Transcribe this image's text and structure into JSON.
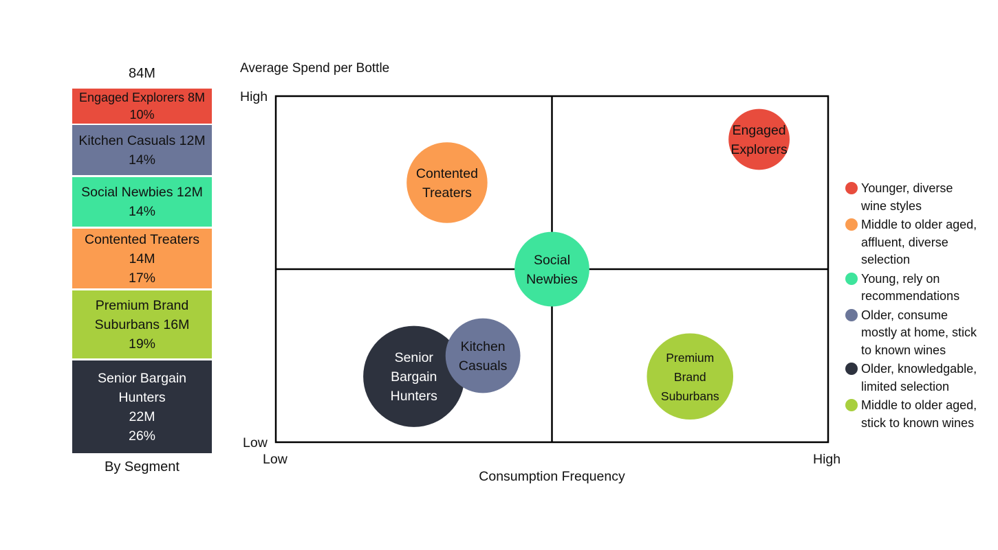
{
  "stack_panel": {
    "total": "84M",
    "footer": "By Segment",
    "segments": [
      {
        "lines": [
          "Engaged Explorers 8M",
          "10%"
        ],
        "color": "#e84c3d",
        "text_color": "#111111"
      },
      {
        "lines": [
          "Kitchen Casuals 12M",
          "14%"
        ],
        "color": "#6b7699",
        "text_color": "#111111"
      },
      {
        "lines": [
          "Social Newbies 12M",
          "14%"
        ],
        "color": "#3ee49c",
        "text_color": "#111111"
      },
      {
        "lines": [
          "Contented Treaters",
          "14M",
          "17%"
        ],
        "color": "#fb9c50",
        "text_color": "#111111"
      },
      {
        "lines": [
          "Premium Brand",
          "Suburbans 16M",
          "19%"
        ],
        "color": "#a8cf3e",
        "text_color": "#111111"
      },
      {
        "lines": [
          "Senior Bargain",
          "Hunters",
          "22M",
          "26%"
        ],
        "color": "#2d323e",
        "text_color": "#ffffff"
      }
    ]
  },
  "chart_data": {
    "type": "scatter",
    "title": "",
    "ylabel": "Average Spend per Bottle",
    "xlabel": "Consumption Frequency",
    "x_ticks": [
      "Low",
      "High"
    ],
    "y_ticks": [
      "Low",
      "High"
    ],
    "xlim": [
      0,
      1
    ],
    "ylim": [
      0,
      1
    ],
    "quadrant_dividers": {
      "x": 0.5,
      "y": 0.5
    },
    "bubbles": [
      {
        "label": [
          "Engaged",
          "Explorers"
        ],
        "x": 0.875,
        "y": 0.875,
        "size": 8,
        "color": "#e84c3d",
        "text_color": "#111111"
      },
      {
        "label": [
          "Contented",
          "Treaters"
        ],
        "x": 0.31,
        "y": 0.75,
        "size": 14,
        "color": "#fb9c50",
        "text_color": "#111111"
      },
      {
        "label": [
          "Social",
          "Newbies"
        ],
        "x": 0.5,
        "y": 0.5,
        "size": 12,
        "color": "#3ee49c",
        "text_color": "#111111"
      },
      {
        "label": [
          "Senior",
          "Bargain",
          "Hunters"
        ],
        "x": 0.25,
        "y": 0.19,
        "size": 22,
        "color": "#2d323e",
        "text_color": "#ffffff"
      },
      {
        "label": [
          "Kitchen",
          "Casuals"
        ],
        "x": 0.375,
        "y": 0.25,
        "size": 12,
        "color": "#6b7699",
        "text_color": "#111111"
      },
      {
        "label": [
          "Premium",
          "Brand",
          "Suburbans"
        ],
        "x": 0.75,
        "y": 0.19,
        "size": 16,
        "color": "#a8cf3e",
        "text_color": "#111111"
      }
    ]
  },
  "legend": [
    {
      "lines": [
        "Younger, diverse",
        "wine styles"
      ],
      "color": "#e84c3d"
    },
    {
      "lines": [
        "Middle to older aged,",
        "affluent, diverse",
        "selection"
      ],
      "color": "#fb9c50"
    },
    {
      "lines": [
        "Young, rely on",
        "recommendations"
      ],
      "color": "#3ee49c"
    },
    {
      "lines": [
        "Older, consume",
        "mostly at home, stick",
        "to known wines"
      ],
      "color": "#6b7699"
    },
    {
      "lines": [
        "Older, knowledgable,",
        "limited selection"
      ],
      "color": "#2d323e"
    },
    {
      "lines": [
        "Middle to older aged,",
        "stick to known wines"
      ],
      "color": "#a8cf3e"
    }
  ]
}
